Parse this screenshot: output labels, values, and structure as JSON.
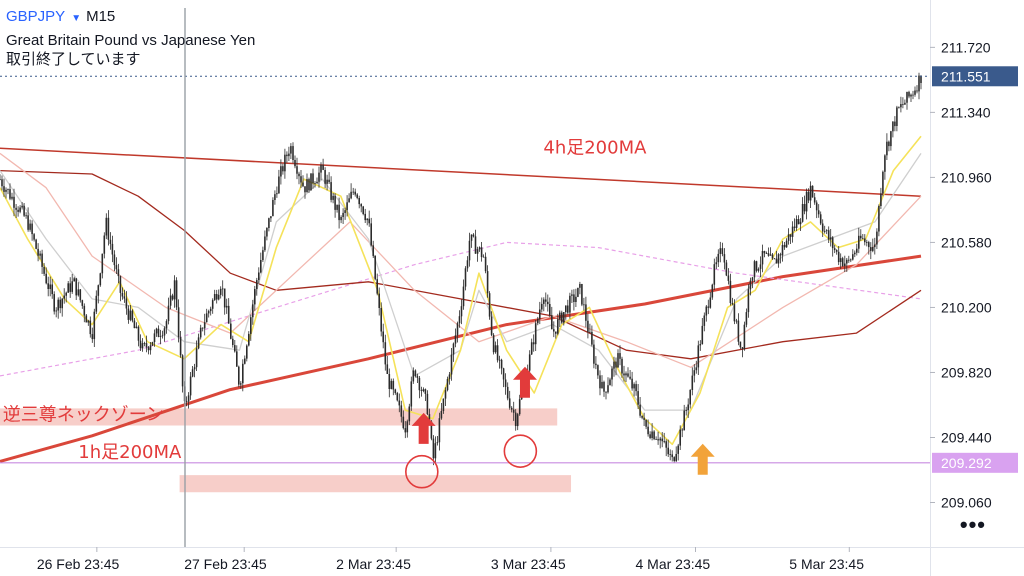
{
  "header": {
    "symbol": "GBPJPY",
    "dropdown_icon": "caret-down-icon",
    "timeframe": "M15",
    "description": "Great Britain Pound vs Japanese Yen",
    "status": "取引終了しています"
  },
  "more_menu": {
    "label": "•••",
    "icon": "more-icon"
  },
  "colors": {
    "candle": "#2b2b2b",
    "ma_fast": "#f5e25a",
    "ma_gray": "#cfcfcf",
    "ma_pink": "#f2b8b0",
    "ma_h4_200": "#c0392b",
    "ma_h1_200": "#d9473a",
    "ma_dashed": "#e8a0e8",
    "ma_dark": "#a32a1e",
    "annotation_text": "#e23b3b",
    "arrow_red": "#e23b3b",
    "arrow_orange": "#f2a33a",
    "zone_fill": "#f6c9c3",
    "last_price_bg": "#3a5a8c",
    "support_line": "#c98ce0",
    "support_label_bg": "#d9a2f0"
  },
  "chart_data": {
    "type": "candlestick",
    "symbol": "GBPJPY",
    "timeframe": "M15",
    "ylim": [
      208.8,
      211.95
    ],
    "y_ticks": [
      209.06,
      209.44,
      209.82,
      210.2,
      210.58,
      210.96,
      211.34,
      211.72
    ],
    "y_tick_labels": [
      "209.060",
      "209.440",
      "209.820",
      "210.200",
      "210.580",
      "210.960",
      "211.340",
      "211.720"
    ],
    "x_labels": [
      "26 Feb 23:45",
      "27 Feb 23:45",
      "2 Mar 23:45",
      "3 Mar 23:45",
      "4 Mar 23:45",
      "5 Mar 23:45"
    ],
    "close_path": [
      [
        0,
        210.95
      ],
      [
        0.03,
        210.7
      ],
      [
        0.06,
        210.2
      ],
      [
        0.08,
        210.35
      ],
      [
        0.1,
        210.05
      ],
      [
        0.115,
        210.7
      ],
      [
        0.13,
        210.3
      ],
      [
        0.155,
        209.95
      ],
      [
        0.18,
        210.1
      ],
      [
        0.19,
        210.35
      ],
      [
        0.2,
        209.6
      ],
      [
        0.22,
        210.1
      ],
      [
        0.24,
        210.35
      ],
      [
        0.26,
        209.75
      ],
      [
        0.28,
        210.4
      ],
      [
        0.3,
        210.9
      ],
      [
        0.315,
        211.15
      ],
      [
        0.33,
        210.9
      ],
      [
        0.35,
        211.0
      ],
      [
        0.37,
        210.7
      ],
      [
        0.385,
        210.9
      ],
      [
        0.4,
        210.7
      ],
      [
        0.42,
        209.8
      ],
      [
        0.44,
        209.5
      ],
      [
        0.45,
        209.85
      ],
      [
        0.465,
        209.6
      ],
      [
        0.47,
        209.3
      ],
      [
        0.49,
        209.9
      ],
      [
        0.5,
        210.2
      ],
      [
        0.51,
        210.6
      ],
      [
        0.525,
        210.5
      ],
      [
        0.535,
        210.0
      ],
      [
        0.55,
        209.7
      ],
      [
        0.56,
        209.55
      ],
      [
        0.575,
        209.9
      ],
      [
        0.59,
        210.3
      ],
      [
        0.6,
        210.05
      ],
      [
        0.615,
        210.2
      ],
      [
        0.63,
        210.3
      ],
      [
        0.645,
        209.9
      ],
      [
        0.655,
        209.7
      ],
      [
        0.67,
        209.9
      ],
      [
        0.69,
        209.7
      ],
      [
        0.7,
        209.5
      ],
      [
        0.715,
        209.45
      ],
      [
        0.73,
        209.3
      ],
      [
        0.745,
        209.6
      ],
      [
        0.76,
        210.0
      ],
      [
        0.775,
        210.4
      ],
      [
        0.785,
        210.55
      ],
      [
        0.795,
        210.2
      ],
      [
        0.805,
        209.95
      ],
      [
        0.815,
        210.4
      ],
      [
        0.83,
        210.5
      ],
      [
        0.84,
        210.45
      ],
      [
        0.855,
        210.6
      ],
      [
        0.87,
        210.75
      ],
      [
        0.88,
        210.9
      ],
      [
        0.895,
        210.65
      ],
      [
        0.91,
        210.5
      ],
      [
        0.92,
        210.45
      ],
      [
        0.935,
        210.6
      ],
      [
        0.95,
        210.55
      ],
      [
        0.96,
        211.1
      ],
      [
        0.975,
        211.35
      ],
      [
        0.99,
        211.45
      ],
      [
        1,
        211.551
      ]
    ],
    "moving_averages": [
      {
        "name": "4h足200MA",
        "color": "#c0392b",
        "width": 1.5,
        "points": [
          [
            0,
            211.13
          ],
          [
            1,
            210.85
          ]
        ]
      },
      {
        "name": "1h足200MA",
        "color": "#d9473a",
        "width": 3,
        "points": [
          [
            0,
            209.3
          ],
          [
            0.1,
            209.45
          ],
          [
            0.25,
            209.72
          ],
          [
            0.4,
            209.9
          ],
          [
            0.55,
            210.1
          ],
          [
            0.7,
            210.22
          ],
          [
            0.85,
            210.38
          ],
          [
            1,
            210.5
          ]
        ]
      },
      {
        "name": "",
        "color": "#e8a0e8",
        "width": 1.2,
        "dash": "4,3",
        "points": [
          [
            0,
            209.8
          ],
          [
            0.15,
            209.95
          ],
          [
            0.3,
            210.2
          ],
          [
            0.45,
            210.45
          ],
          [
            0.55,
            210.58
          ],
          [
            0.65,
            210.55
          ],
          [
            0.8,
            210.4
          ],
          [
            1,
            210.25
          ]
        ]
      },
      {
        "name": "",
        "color": "#a32a1e",
        "width": 1.3,
        "points": [
          [
            0,
            211.0
          ],
          [
            0.1,
            210.98
          ],
          [
            0.15,
            210.85
          ],
          [
            0.2,
            210.65
          ],
          [
            0.25,
            210.4
          ],
          [
            0.3,
            210.3
          ],
          [
            0.4,
            210.35
          ],
          [
            0.5,
            210.25
          ],
          [
            0.6,
            210.15
          ],
          [
            0.68,
            209.95
          ],
          [
            0.75,
            209.9
          ],
          [
            0.85,
            210.0
          ],
          [
            0.93,
            210.05
          ],
          [
            1,
            210.3
          ]
        ]
      },
      {
        "name": "",
        "color": "#f2b8b0",
        "width": 1.3,
        "points": [
          [
            0,
            211.1
          ],
          [
            0.05,
            210.9
          ],
          [
            0.1,
            210.5
          ],
          [
            0.18,
            210.2
          ],
          [
            0.25,
            210.05
          ],
          [
            0.32,
            210.4
          ],
          [
            0.38,
            210.7
          ],
          [
            0.45,
            210.3
          ],
          [
            0.52,
            210.0
          ],
          [
            0.6,
            210.15
          ],
          [
            0.68,
            210.0
          ],
          [
            0.75,
            209.85
          ],
          [
            0.85,
            210.2
          ],
          [
            0.93,
            210.45
          ],
          [
            1,
            210.85
          ]
        ]
      },
      {
        "name": "",
        "color": "#cfcfcf",
        "width": 1.3,
        "points": [
          [
            0,
            211.0
          ],
          [
            0.05,
            210.6
          ],
          [
            0.1,
            210.25
          ],
          [
            0.15,
            210.2
          ],
          [
            0.2,
            210.0
          ],
          [
            0.26,
            209.95
          ],
          [
            0.3,
            210.7
          ],
          [
            0.35,
            210.95
          ],
          [
            0.4,
            210.6
          ],
          [
            0.45,
            209.8
          ],
          [
            0.5,
            209.95
          ],
          [
            0.52,
            210.3
          ],
          [
            0.55,
            210.0
          ],
          [
            0.6,
            210.1
          ],
          [
            0.65,
            209.95
          ],
          [
            0.7,
            209.6
          ],
          [
            0.75,
            209.6
          ],
          [
            0.8,
            210.25
          ],
          [
            0.85,
            210.5
          ],
          [
            0.9,
            210.6
          ],
          [
            0.95,
            210.7
          ],
          [
            1,
            211.1
          ]
        ]
      },
      {
        "name": "",
        "color": "#f5e25a",
        "width": 1.6,
        "points": [
          [
            0,
            210.9
          ],
          [
            0.03,
            210.6
          ],
          [
            0.07,
            210.25
          ],
          [
            0.1,
            210.1
          ],
          [
            0.13,
            210.35
          ],
          [
            0.16,
            210.0
          ],
          [
            0.2,
            209.9
          ],
          [
            0.24,
            210.1
          ],
          [
            0.27,
            210.0
          ],
          [
            0.3,
            210.55
          ],
          [
            0.33,
            210.95
          ],
          [
            0.37,
            210.85
          ],
          [
            0.41,
            210.3
          ],
          [
            0.44,
            209.6
          ],
          [
            0.47,
            209.55
          ],
          [
            0.5,
            209.95
          ],
          [
            0.52,
            210.4
          ],
          [
            0.55,
            209.95
          ],
          [
            0.58,
            209.7
          ],
          [
            0.61,
            210.1
          ],
          [
            0.64,
            210.2
          ],
          [
            0.67,
            209.85
          ],
          [
            0.7,
            209.55
          ],
          [
            0.73,
            209.4
          ],
          [
            0.76,
            209.7
          ],
          [
            0.79,
            210.2
          ],
          [
            0.82,
            210.3
          ],
          [
            0.85,
            210.6
          ],
          [
            0.88,
            210.7
          ],
          [
            0.91,
            210.55
          ],
          [
            0.94,
            210.6
          ],
          [
            0.97,
            211.0
          ],
          [
            1,
            211.2
          ]
        ]
      }
    ],
    "last_price": 211.551,
    "last_price_label": "211.551",
    "support_line": 209.292,
    "support_label": "209.292",
    "annotations": [
      {
        "text": "4h足200MA",
        "x": 0.59,
        "y": 211.1
      },
      {
        "text": "1h足200MA",
        "x": 0.085,
        "y": 209.32
      },
      {
        "text": "逆三尊ネックゾーン",
        "x": 0.003,
        "y": 209.54
      }
    ],
    "zones": [
      {
        "x0": 0,
        "x1": 0.605,
        "y0": 209.51,
        "y1": 209.61
      },
      {
        "x0": 0.195,
        "x1": 0.62,
        "y0": 209.12,
        "y1": 209.22
      }
    ],
    "circles": [
      {
        "x": 0.458,
        "y": 209.24
      },
      {
        "x": 0.565,
        "y": 209.36
      }
    ],
    "arrows": [
      {
        "x": 0.46,
        "y": 209.49,
        "color": "#e23b3b"
      },
      {
        "x": 0.57,
        "y": 209.76,
        "color": "#e23b3b"
      },
      {
        "x": 0.763,
        "y": 209.31,
        "color": "#f2a33a"
      }
    ]
  }
}
